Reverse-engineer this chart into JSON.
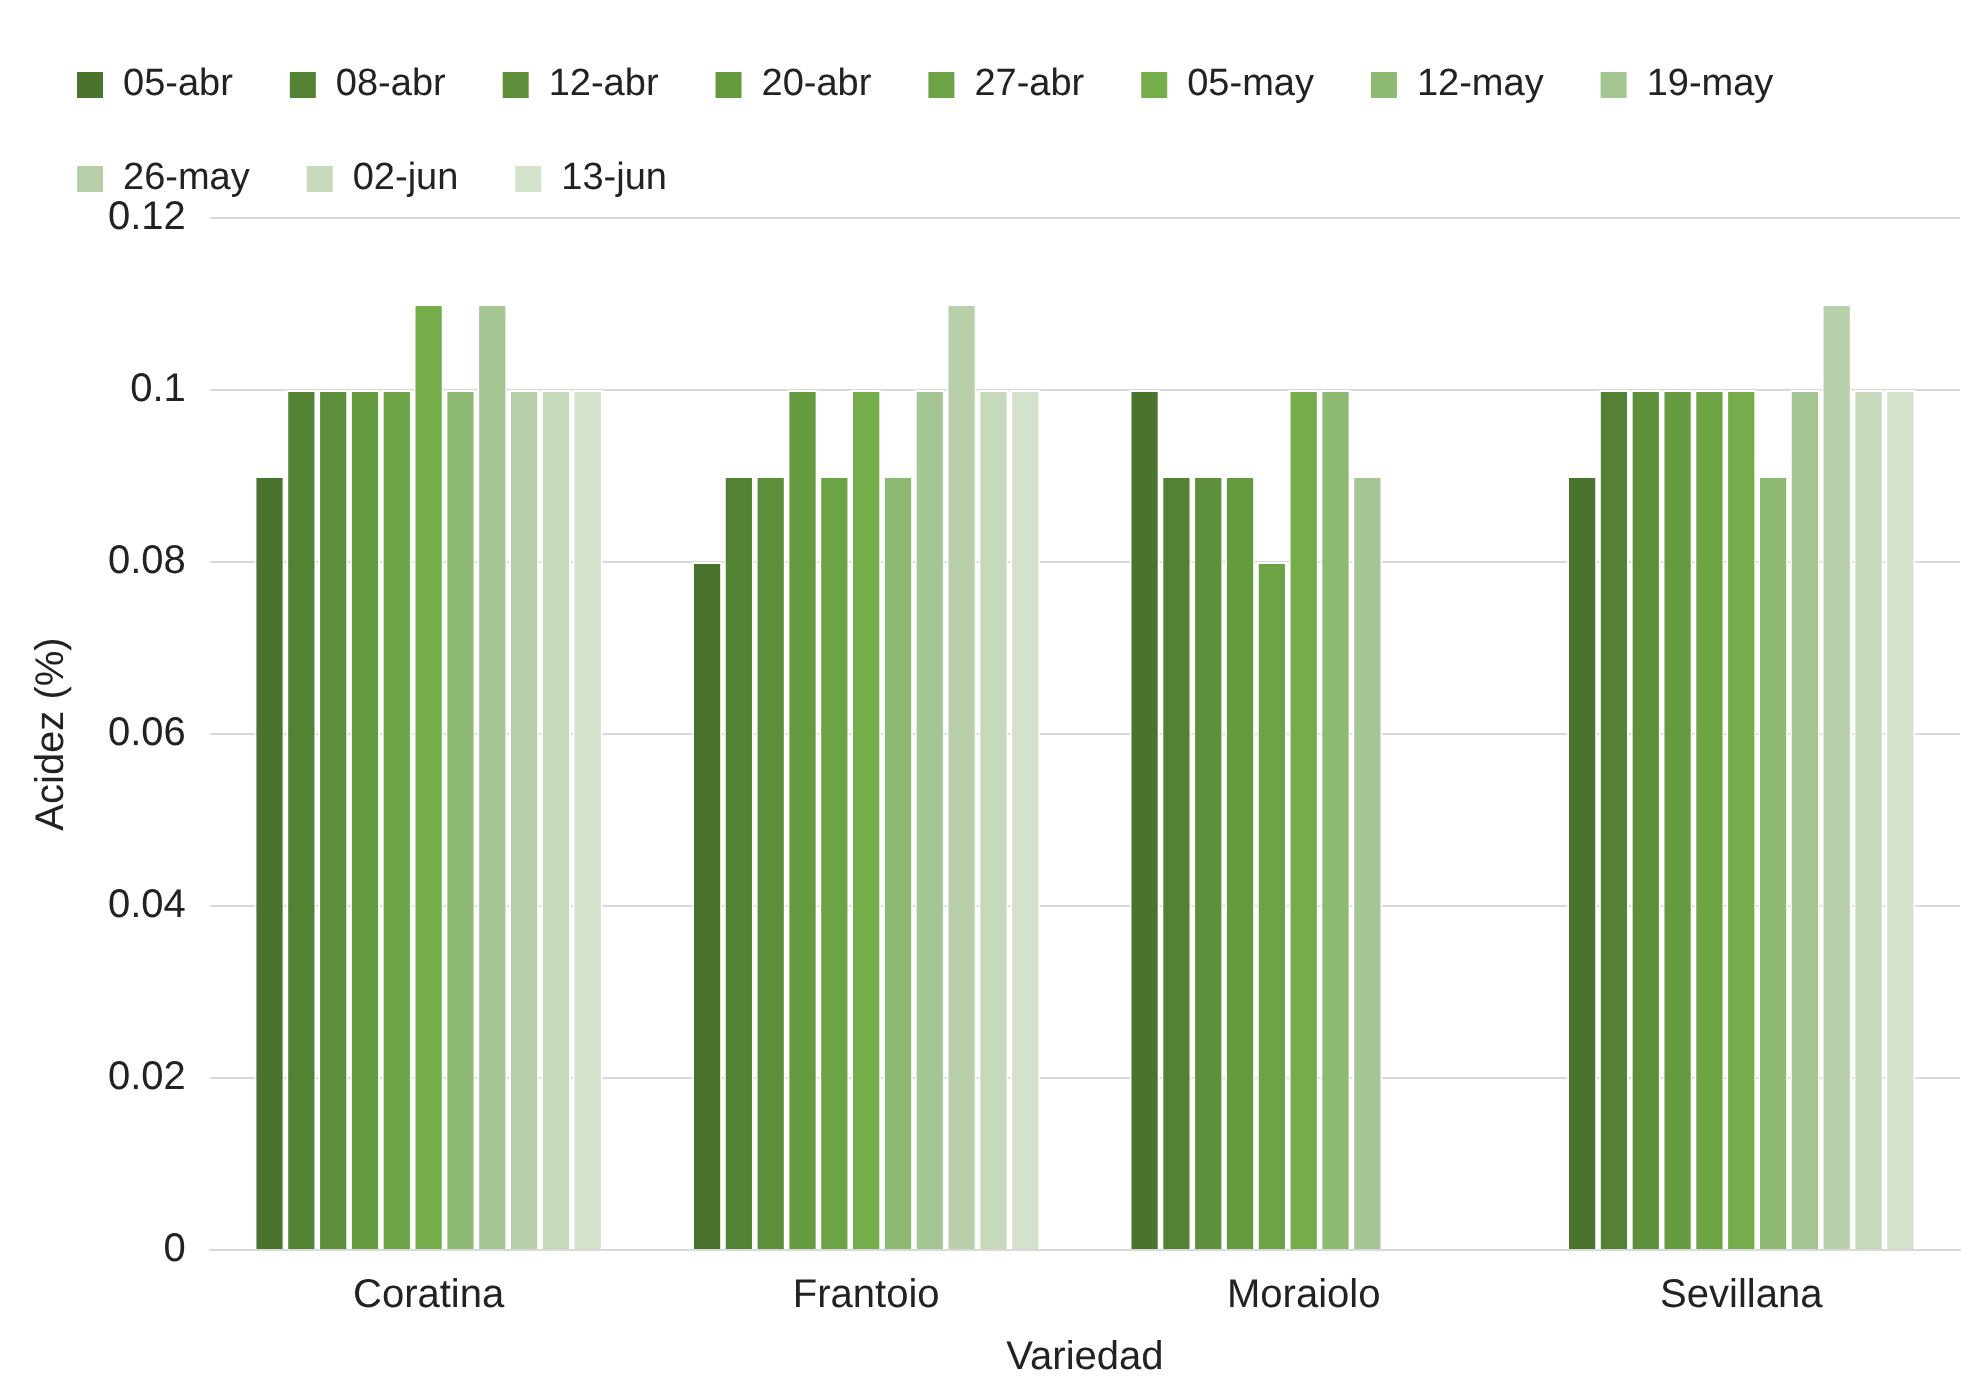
{
  "chart_data": {
    "type": "bar",
    "xlabel": "Variedad",
    "ylabel": "Acidez (%)",
    "categories": [
      "Coratina",
      "Frantoio",
      "Moraiolo",
      "Sevillana"
    ],
    "series": [
      {
        "name": "05-abr",
        "color": "#4a732e",
        "values": [
          0.09,
          0.08,
          0.1,
          0.09
        ]
      },
      {
        "name": "08-abr",
        "color": "#548235",
        "values": [
          0.1,
          0.09,
          0.09,
          0.1
        ]
      },
      {
        "name": "12-abr",
        "color": "#5d8f3a",
        "values": [
          0.1,
          0.09,
          0.09,
          0.1
        ]
      },
      {
        "name": "20-abr",
        "color": "#659b3f",
        "values": [
          0.1,
          0.1,
          0.09,
          0.1
        ]
      },
      {
        "name": "27-abr",
        "color": "#6ca445",
        "values": [
          0.1,
          0.09,
          0.08,
          0.1
        ]
      },
      {
        "name": "05-may",
        "color": "#74ad4a",
        "values": [
          0.11,
          0.1,
          0.1,
          0.1
        ]
      },
      {
        "name": "12-may",
        "color": "#8eb972",
        "values": [
          0.1,
          0.09,
          0.1,
          0.09
        ]
      },
      {
        "name": "19-may",
        "color": "#a5c592",
        "values": [
          0.11,
          0.1,
          0.09,
          0.1
        ]
      },
      {
        "name": "26-may",
        "color": "#b7d0a9",
        "values": [
          0.1,
          0.11,
          null,
          0.11
        ]
      },
      {
        "name": "02-jun",
        "color": "#c6d9bb",
        "values": [
          0.1,
          0.1,
          null,
          0.1
        ]
      },
      {
        "name": "13-jun",
        "color": "#d4e2cc",
        "values": [
          0.1,
          0.1,
          null,
          0.1
        ]
      }
    ],
    "ylim": [
      0,
      0.12
    ],
    "yticks": [
      0,
      0.02,
      0.04,
      0.06,
      0.08,
      0.1,
      0.12
    ],
    "grid": "y",
    "legend": "top"
  }
}
